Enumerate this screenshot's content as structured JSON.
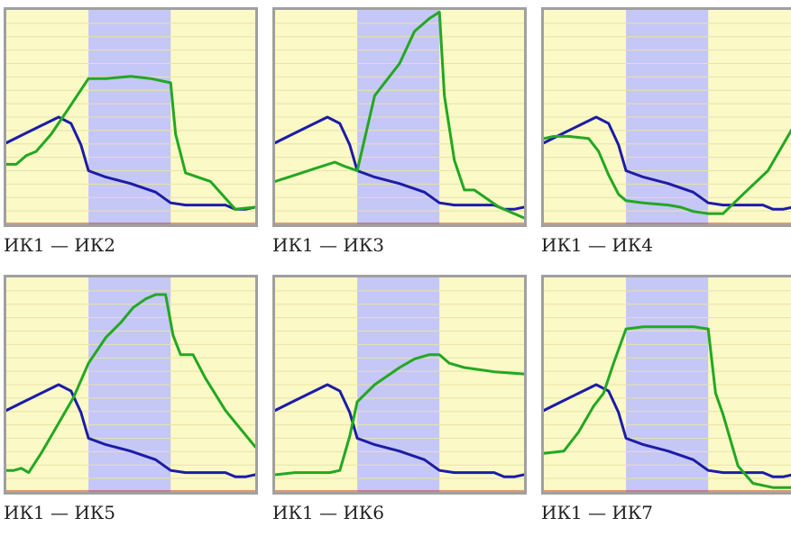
{
  "colors": {
    "background": "#fbf9c6",
    "band": "#c5c7f6",
    "gridline": "#eae2a8",
    "baseline": "#c0392b",
    "frame": "#a0a0a0",
    "series_blue": "#1c1ca8",
    "series_green": "#22a822"
  },
  "chart_data": [
    {
      "type": "line",
      "title": "ИК1 — ИК2",
      "xlim": [
        0,
        100
      ],
      "ylim": [
        0,
        100
      ],
      "grid": true,
      "shaded_band_x": [
        33,
        66
      ],
      "series": [
        {
          "color": "#1c1ca8",
          "x": [
            0,
            7,
            14,
            21,
            26,
            30,
            33,
            40,
            50,
            60,
            66,
            72,
            80,
            88,
            92,
            96,
            100
          ],
          "y": [
            38,
            42,
            46,
            50,
            47,
            37,
            25,
            22,
            19,
            15,
            10,
            9,
            9,
            9,
            7,
            7,
            8
          ]
        },
        {
          "color": "#22a822",
          "x": [
            0,
            4,
            8,
            12,
            18,
            25,
            33,
            40,
            50,
            58,
            66,
            68,
            72,
            82,
            92,
            100
          ],
          "y": [
            28,
            28,
            32,
            34,
            42,
            54,
            68,
            68,
            69,
            68,
            66,
            42,
            24,
            20,
            7,
            8
          ]
        }
      ]
    },
    {
      "type": "line",
      "title": "ИК1 — ИК3",
      "xlim": [
        0,
        100
      ],
      "ylim": [
        0,
        100
      ],
      "grid": true,
      "shaded_band_x": [
        33,
        66
      ],
      "series": [
        {
          "color": "#1c1ca8",
          "x": [
            0,
            7,
            14,
            21,
            26,
            30,
            33,
            40,
            50,
            60,
            66,
            72,
            80,
            88,
            92,
            96,
            100
          ],
          "y": [
            38,
            42,
            46,
            50,
            47,
            37,
            25,
            22,
            19,
            15,
            10,
            9,
            9,
            9,
            7,
            7,
            8
          ]
        },
        {
          "color": "#22a822",
          "x": [
            0,
            8,
            16,
            24,
            28,
            33,
            40,
            50,
            56,
            62,
            66,
            68,
            72,
            76,
            80,
            90,
            100
          ],
          "y": [
            20,
            23,
            26,
            29,
            27,
            25,
            60,
            75,
            90,
            96,
            99,
            60,
            30,
            16,
            16,
            8,
            3
          ]
        }
      ]
    },
    {
      "type": "line",
      "title": "ИК1 — ИК4",
      "xlim": [
        0,
        100
      ],
      "ylim": [
        0,
        100
      ],
      "grid": true,
      "shaded_band_x": [
        33,
        66
      ],
      "series": [
        {
          "color": "#1c1ca8",
          "x": [
            0,
            7,
            14,
            21,
            26,
            30,
            33,
            40,
            50,
            60,
            66,
            72,
            80,
            88,
            92,
            96,
            100
          ],
          "y": [
            38,
            42,
            46,
            50,
            47,
            37,
            25,
            22,
            19,
            15,
            10,
            9,
            9,
            9,
            7,
            7,
            8
          ]
        },
        {
          "color": "#22a822",
          "x": [
            0,
            4,
            10,
            18,
            22,
            26,
            30,
            33,
            40,
            50,
            55,
            60,
            66,
            72,
            80,
            90,
            100
          ],
          "y": [
            40,
            41,
            41,
            40,
            34,
            23,
            14,
            11,
            10,
            9,
            8,
            6,
            5,
            5,
            14,
            25,
            45
          ]
        }
      ]
    },
    {
      "type": "line",
      "title": "ИК1 — ИК5",
      "xlim": [
        0,
        100
      ],
      "ylim": [
        0,
        100
      ],
      "grid": true,
      "shaded_band_x": [
        33,
        66
      ],
      "series": [
        {
          "color": "#1c1ca8",
          "x": [
            0,
            7,
            14,
            21,
            26,
            30,
            33,
            40,
            50,
            60,
            66,
            72,
            80,
            88,
            92,
            96,
            100
          ],
          "y": [
            38,
            42,
            46,
            50,
            47,
            37,
            25,
            22,
            19,
            15,
            10,
            9,
            9,
            9,
            7,
            7,
            8
          ]
        },
        {
          "color": "#22a822",
          "x": [
            0,
            3,
            6,
            9,
            14,
            20,
            27,
            33,
            40,
            46,
            51,
            56,
            60,
            64,
            67,
            70,
            75,
            80,
            88,
            100
          ],
          "y": [
            10,
            10,
            11,
            9,
            18,
            30,
            44,
            60,
            72,
            79,
            86,
            90,
            92,
            92,
            73,
            64,
            64,
            53,
            38,
            21
          ]
        }
      ]
    },
    {
      "type": "line",
      "title": "ИК1 — ИК6",
      "xlim": [
        0,
        100
      ],
      "ylim": [
        0,
        100
      ],
      "grid": true,
      "shaded_band_x": [
        33,
        66
      ],
      "series": [
        {
          "color": "#1c1ca8",
          "x": [
            0,
            7,
            14,
            21,
            26,
            30,
            33,
            40,
            50,
            60,
            66,
            72,
            80,
            88,
            92,
            96,
            100
          ],
          "y": [
            38,
            42,
            46,
            50,
            47,
            37,
            25,
            22,
            19,
            15,
            10,
            9,
            9,
            9,
            7,
            7,
            8
          ]
        },
        {
          "color": "#22a822",
          "x": [
            0,
            8,
            16,
            22,
            26,
            30,
            33,
            40,
            50,
            56,
            62,
            66,
            70,
            76,
            88,
            100
          ],
          "y": [
            8,
            9,
            9,
            9,
            10,
            26,
            42,
            50,
            58,
            62,
            64,
            64,
            60,
            58,
            56,
            55
          ]
        }
      ]
    },
    {
      "type": "line",
      "title": "ИК1 — ИК7",
      "xlim": [
        0,
        100
      ],
      "ylim": [
        0,
        100
      ],
      "grid": true,
      "shaded_band_x": [
        33,
        66
      ],
      "series": [
        {
          "color": "#1c1ca8",
          "x": [
            0,
            7,
            14,
            21,
            26,
            30,
            33,
            40,
            50,
            60,
            66,
            72,
            80,
            88,
            92,
            96,
            100
          ],
          "y": [
            38,
            42,
            46,
            50,
            47,
            37,
            25,
            22,
            19,
            15,
            10,
            9,
            9,
            9,
            7,
            7,
            8
          ]
        },
        {
          "color": "#22a822",
          "x": [
            0,
            8,
            14,
            20,
            24,
            28,
            33,
            40,
            50,
            60,
            66,
            67,
            69,
            72,
            78,
            84,
            92,
            100
          ],
          "y": [
            18,
            19,
            28,
            40,
            46,
            60,
            76,
            77,
            77,
            77,
            76,
            66,
            46,
            36,
            12,
            4,
            2,
            2
          ]
        }
      ]
    }
  ]
}
